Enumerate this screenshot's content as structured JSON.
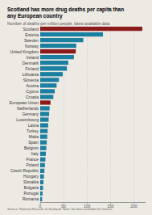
{
  "chart_data": {
    "type": "bar",
    "orientation": "horizontal",
    "title": "Scotland has more drug deaths per capita than\nany European country",
    "subtitle": "Number of deaths per million people, latest available data",
    "annotations": [
      "Source: National Records of Scotland. Note: No data available for Greece"
    ],
    "categories": [
      "Scotland",
      "Estonia",
      "Sweden",
      "Norway",
      "United Kingdom",
      "Ireland",
      "Denmark",
      "Finland",
      "Lithuania",
      "Slovenia",
      "Austria",
      "Cyprus",
      "Croatia",
      "European Union",
      "Netherlands",
      "Germany",
      "Luxembourg",
      "Latvia",
      "Turkey",
      "Malta",
      "Spain",
      "Belgium",
      "Italy",
      "France",
      "Poland",
      "Czech Republic",
      "Hungary",
      "Slovakia",
      "Bulgaria",
      "Portugal",
      "Romania"
    ],
    "values": [
      218,
      134,
      92,
      77,
      76,
      72,
      60,
      57,
      48,
      40,
      35,
      31,
      28,
      22,
      20,
      19,
      18,
      17,
      16,
      15,
      14,
      13,
      12,
      11,
      10,
      9,
      8,
      7,
      6,
      5,
      4
    ],
    "colors": [
      "#8b1a1a",
      "#1a7fa0",
      "#1a7fa0",
      "#1a7fa0",
      "#8b1a1a",
      "#1a7fa0",
      "#1a7fa0",
      "#1a7fa0",
      "#1a7fa0",
      "#1a7fa0",
      "#1a7fa0",
      "#1a7fa0",
      "#1a7fa0",
      "#8b1a1a",
      "#1a7fa0",
      "#1a7fa0",
      "#1a7fa0",
      "#1a7fa0",
      "#1a7fa0",
      "#1a7fa0",
      "#1a7fa0",
      "#1a7fa0",
      "#1a7fa0",
      "#1a7fa0",
      "#1a7fa0",
      "#1a7fa0",
      "#1a7fa0",
      "#1a7fa0",
      "#1a7fa0",
      "#1a7fa0",
      "#1a7fa0"
    ],
    "xlim": [
      0,
      225
    ],
    "xticks": [
      0,
      50,
      100,
      150,
      200
    ],
    "grid": true
  }
}
